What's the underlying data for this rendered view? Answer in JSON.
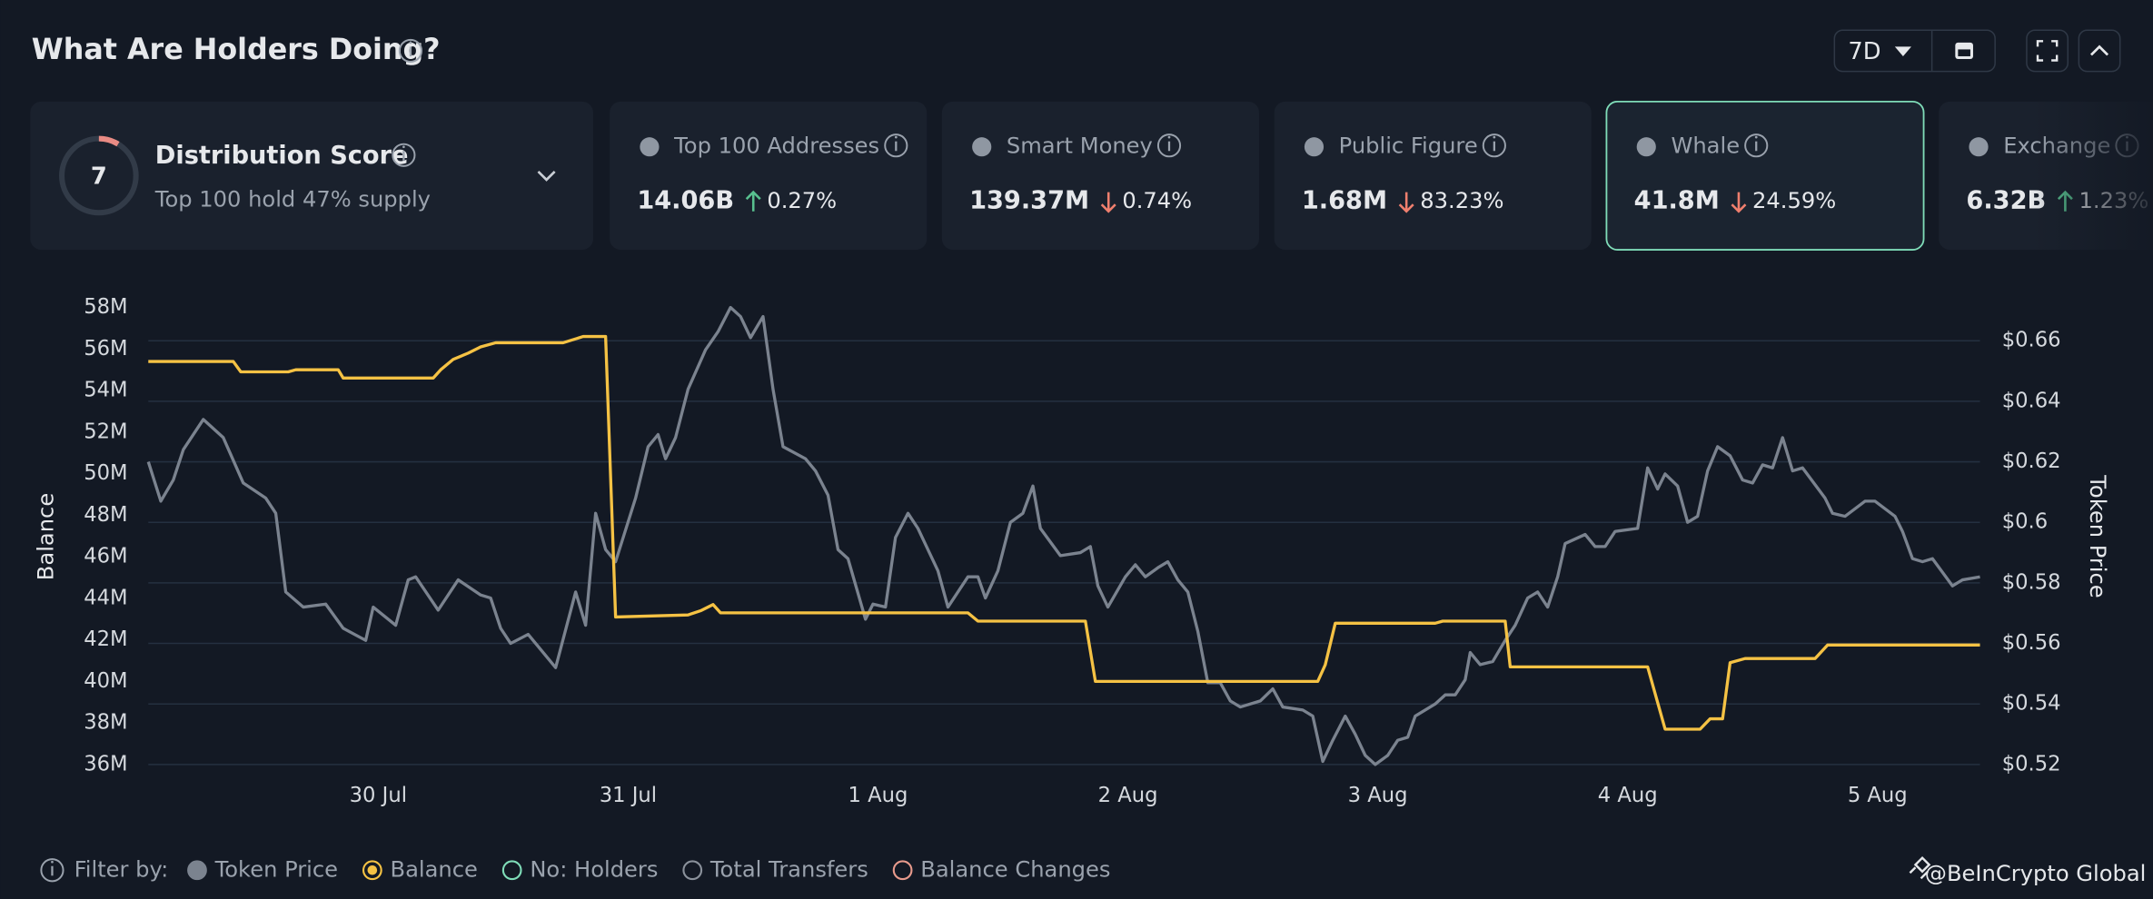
{
  "header": {
    "title": "What Are Holders Doing?",
    "range": "7D"
  },
  "distribution": {
    "title": "Distribution Score",
    "score": "7",
    "subtitle": "Top 100 hold 47% supply"
  },
  "metrics": [
    {
      "label": "Top 100 Addresses",
      "value": "14.06B",
      "change": "0.27%",
      "direction": "up",
      "selected": false
    },
    {
      "label": "Smart Money",
      "value": "139.37M",
      "change": "0.74%",
      "direction": "down",
      "selected": false
    },
    {
      "label": "Public Figure",
      "value": "1.68M",
      "change": "83.23%",
      "direction": "down",
      "selected": false
    },
    {
      "label": "Whale",
      "value": "41.8M",
      "change": "24.59%",
      "direction": "down",
      "selected": true
    },
    {
      "label": "Exchange",
      "value": "6.32B",
      "change": "1.23%",
      "direction": "up",
      "selected": false
    }
  ],
  "chart_data": {
    "type": "line",
    "ylabel": "Balance",
    "y2label": "Token Price",
    "grid": true,
    "xlim": [
      -0.92,
      6.41
    ],
    "xticks": [
      {
        "value": 0,
        "label": "30 Jul"
      },
      {
        "value": 1,
        "label": "31 Jul"
      },
      {
        "value": 2,
        "label": "1 Aug"
      },
      {
        "value": 3,
        "label": "2 Aug"
      },
      {
        "value": 4,
        "label": "3 Aug"
      },
      {
        "value": 5,
        "label": "4 Aug"
      },
      {
        "value": 6,
        "label": "5 Aug"
      }
    ],
    "ylim": [
      36,
      58
    ],
    "yticks": [
      {
        "value": 36,
        "label": "36M"
      },
      {
        "value": 38,
        "label": "38M"
      },
      {
        "value": 40,
        "label": "40M"
      },
      {
        "value": 42,
        "label": "42M"
      },
      {
        "value": 44,
        "label": "44M"
      },
      {
        "value": 46,
        "label": "46M"
      },
      {
        "value": 48,
        "label": "48M"
      },
      {
        "value": 50,
        "label": "50M"
      },
      {
        "value": 52,
        "label": "52M"
      },
      {
        "value": 54,
        "label": "54M"
      },
      {
        "value": 56,
        "label": "56M"
      },
      {
        "value": 58,
        "label": "58M"
      }
    ],
    "y2lim": [
      0.52,
      0.671
    ],
    "y2ticks": [
      {
        "value": 0.52,
        "label": "$0.52"
      },
      {
        "value": 0.54,
        "label": "$0.54"
      },
      {
        "value": 0.56,
        "label": "$0.56"
      },
      {
        "value": 0.58,
        "label": "$0.58"
      },
      {
        "value": 0.6,
        "label": "$0.6"
      },
      {
        "value": 0.62,
        "label": "$0.62"
      },
      {
        "value": 0.64,
        "label": "$0.64"
      },
      {
        "value": 0.66,
        "label": "$0.66"
      }
    ],
    "series": [
      {
        "name": "Token Price",
        "color": "#7b838f",
        "axis": "y2",
        "x": [
          -0.92,
          -0.87,
          -0.82,
          -0.78,
          -0.7,
          -0.62,
          -0.54,
          -0.45,
          -0.41,
          -0.37,
          -0.3,
          -0.21,
          -0.14,
          -0.05,
          -0.02,
          0.07,
          0.12,
          0.15,
          0.24,
          0.32,
          0.41,
          0.45,
          0.49,
          0.53,
          0.6,
          0.68,
          0.71,
          0.79,
          0.83,
          0.87,
          0.91,
          0.95,
          1.03,
          1.08,
          1.12,
          1.15,
          1.19,
          1.24,
          1.31,
          1.36,
          1.41,
          1.45,
          1.49,
          1.54,
          1.58,
          1.62,
          1.71,
          1.75,
          1.8,
          1.84,
          1.88,
          1.95,
          1.98,
          2.03,
          2.07,
          2.12,
          2.16,
          2.24,
          2.28,
          2.36,
          2.4,
          2.43,
          2.48,
          2.53,
          2.58,
          2.62,
          2.65,
          2.73,
          2.81,
          2.85,
          2.88,
          2.92,
          2.99,
          3.03,
          3.07,
          3.12,
          3.16,
          3.2,
          3.24,
          3.28,
          3.32,
          3.37,
          3.41,
          3.45,
          3.53,
          3.58,
          3.62,
          3.7,
          3.74,
          3.78,
          3.82,
          3.87,
          3.91,
          3.95,
          3.99,
          4.04,
          4.08,
          4.12,
          4.15,
          4.23,
          4.27,
          4.31,
          4.35,
          4.37,
          4.41,
          4.46,
          4.51,
          4.55,
          4.6,
          4.64,
          4.68,
          4.72,
          4.75,
          4.83,
          4.87,
          4.91,
          4.95,
          5.04,
          5.08,
          5.12,
          5.15,
          5.2,
          5.24,
          5.28,
          5.32,
          5.36,
          5.41,
          5.46,
          5.5,
          5.54,
          5.58,
          5.62,
          5.66,
          5.7,
          5.79,
          5.82,
          5.87,
          5.95,
          5.99,
          6.07,
          6.1,
          6.14,
          6.18,
          6.22,
          6.3,
          6.34,
          6.41
        ],
        "values": [
          0.62,
          0.607,
          0.614,
          0.624,
          0.634,
          0.628,
          0.613,
          0.608,
          0.603,
          0.577,
          0.572,
          0.573,
          0.565,
          0.561,
          0.572,
          0.566,
          0.581,
          0.582,
          0.571,
          0.581,
          0.576,
          0.575,
          0.565,
          0.56,
          0.563,
          0.555,
          0.552,
          0.577,
          0.566,
          0.603,
          0.591,
          0.587,
          0.608,
          0.625,
          0.629,
          0.621,
          0.628,
          0.644,
          0.657,
          0.663,
          0.671,
          0.668,
          0.661,
          0.668,
          0.644,
          0.625,
          0.621,
          0.617,
          0.609,
          0.591,
          0.588,
          0.568,
          0.573,
          0.572,
          0.595,
          0.603,
          0.598,
          0.584,
          0.572,
          0.582,
          0.582,
          0.575,
          0.584,
          0.6,
          0.603,
          0.612,
          0.598,
          0.589,
          0.59,
          0.592,
          0.579,
          0.572,
          0.582,
          0.586,
          0.582,
          0.585,
          0.587,
          0.581,
          0.577,
          0.564,
          0.547,
          0.547,
          0.541,
          0.539,
          0.541,
          0.545,
          0.539,
          0.538,
          0.536,
          0.521,
          0.528,
          0.536,
          0.53,
          0.523,
          0.52,
          0.523,
          0.528,
          0.529,
          0.536,
          0.54,
          0.543,
          0.543,
          0.548,
          0.557,
          0.553,
          0.554,
          0.561,
          0.566,
          0.575,
          0.577,
          0.572,
          0.582,
          0.593,
          0.596,
          0.592,
          0.592,
          0.597,
          0.598,
          0.618,
          0.611,
          0.616,
          0.612,
          0.6,
          0.602,
          0.617,
          0.625,
          0.622,
          0.614,
          0.613,
          0.619,
          0.618,
          0.628,
          0.617,
          0.618,
          0.608,
          0.603,
          0.602,
          0.607,
          0.607,
          0.602,
          0.597,
          0.588,
          0.587,
          0.588,
          0.579,
          0.581,
          0.582
        ]
      },
      {
        "name": "Balance",
        "color": "#f5c244",
        "axis": "y",
        "x": [
          -0.92,
          -0.58,
          -0.55,
          -0.36,
          -0.33,
          -0.16,
          -0.14,
          0.22,
          0.25,
          0.3,
          0.36,
          0.41,
          0.47,
          0.74,
          0.82,
          0.91,
          0.95,
          1.24,
          1.29,
          1.34,
          1.37,
          2.36,
          2.4,
          2.83,
          2.87,
          3.76,
          3.79,
          3.83,
          4.23,
          4.26,
          4.51,
          4.53,
          5.08,
          5.15,
          5.29,
          5.33,
          5.38,
          5.41,
          5.47,
          5.75,
          5.8,
          6.41
        ],
        "values": [
          55.4,
          55.4,
          54.9,
          54.9,
          55.0,
          55.0,
          54.6,
          54.6,
          55.0,
          55.5,
          55.8,
          56.1,
          56.3,
          56.3,
          56.6,
          56.6,
          43.1,
          43.2,
          43.4,
          43.7,
          43.3,
          43.3,
          42.9,
          42.9,
          40.0,
          40.0,
          40.8,
          42.8,
          42.8,
          42.9,
          42.9,
          40.7,
          40.7,
          37.7,
          37.7,
          38.2,
          38.2,
          40.9,
          41.1,
          41.1,
          41.75,
          41.75
        ]
      }
    ]
  },
  "filters": {
    "label": "Filter by:",
    "others": [
      {
        "name": "No: Holders",
        "color": "#7fdcb8"
      },
      {
        "name": "Total Transfers",
        "color": "#8a919b"
      },
      {
        "name": "Balance Changes",
        "color": "#e79a8c"
      }
    ]
  },
  "watermark": "@BeInCrypto Global"
}
